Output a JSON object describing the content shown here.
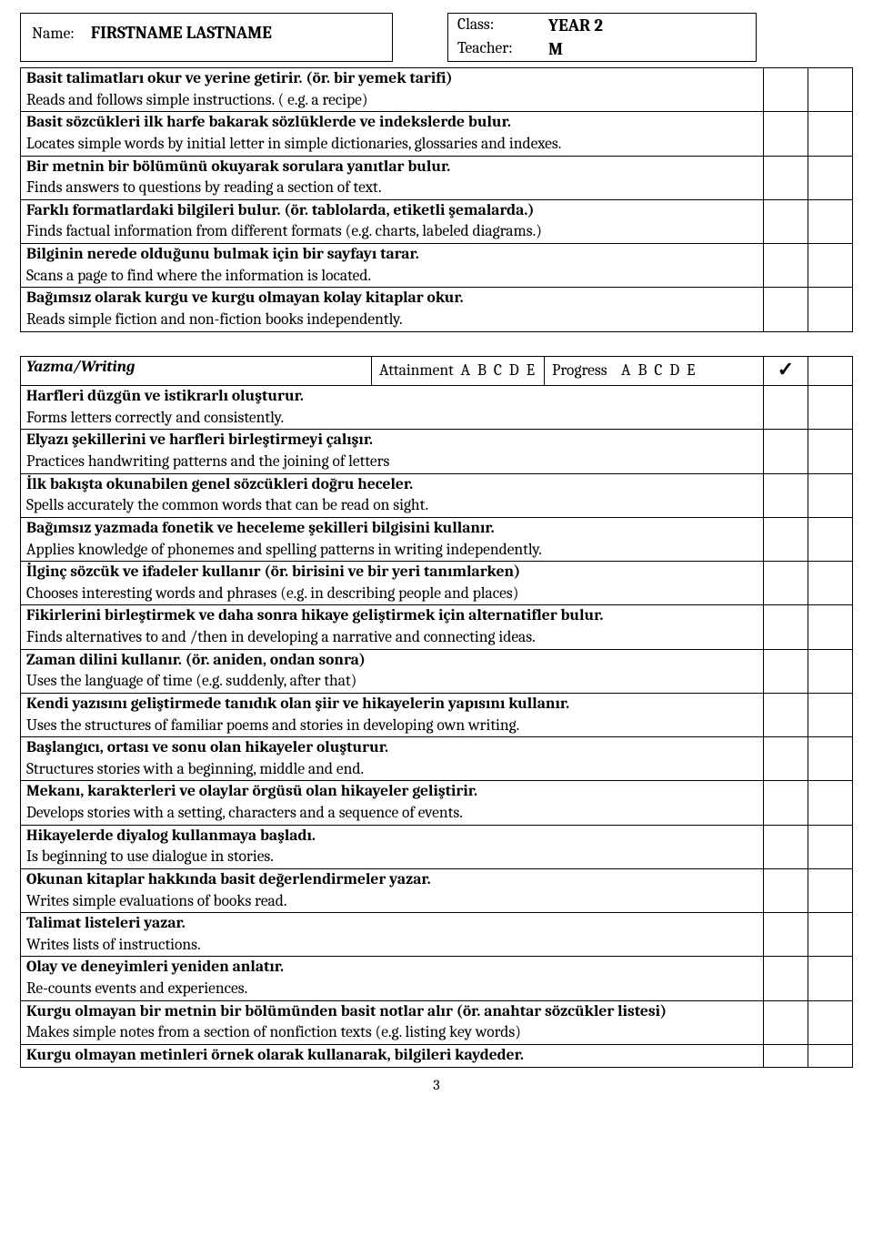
{
  "header": {
    "name_label": "Name:",
    "name_value": "FIRSTNAME LASTNAME",
    "class_label": "Class:",
    "class_value": "YEAR 2",
    "teacher_label": "Teacher:",
    "teacher_value": "M"
  },
  "reading_rows": [
    {
      "tr": "Basit talimatları okur ve yerine getirir. (ör. bir yemek tarifi)",
      "en": "Reads and follows simple instructions. ( e.g. a recipe)"
    },
    {
      "tr": "Basit sözcükleri ilk harfe bakarak sözlüklerde ve indekslerde bulur.",
      "en": "Locates simple words by initial letter in simple dictionaries, glossaries and indexes."
    },
    {
      "tr": "Bir metnin bir bölümünü okuyarak sorulara yanıtlar bulur.",
      "en": "Finds answers to questions by reading a section of text."
    },
    {
      "tr": "Farklı formatlardaki bilgileri bulur. (ör. tablolarda, etiketli şemalarda.)",
      "en": "Finds factual information from different formats (e.g. charts, labeled diagrams.)"
    },
    {
      "tr": "Bilginin nerede olduğunu bulmak için bir sayfayı tarar.",
      "en": "Scans a page to find where the information is located."
    },
    {
      "tr": "Bağımsız olarak kurgu ve kurgu olmayan kolay kitaplar okur.",
      "en": "Reads simple fiction and non-fiction books independently."
    }
  ],
  "writing_section": {
    "title": "Yazma/Writing",
    "attainment_label": "Attainment",
    "progress_label": "Progress",
    "grades": "A  B  C  D  E",
    "check": "✓"
  },
  "writing_rows": [
    {
      "tr": "Harfleri düzgün ve istikrarlı oluşturur.",
      "en": "Forms letters correctly and consistently."
    },
    {
      "tr": "Elyazı şekillerini ve harfleri birleştirmeyi çalışır.",
      "en": "Practices handwriting patterns and the joining of letters"
    },
    {
      "tr": "İlk bakışta okunabilen genel sözcükleri doğru heceler.",
      "en": "Spells accurately the common words that can be read on sight."
    },
    {
      "tr": "Bağımsız yazmada fonetik ve heceleme şekilleri bilgisini kullanır.",
      "en": "Applies knowledge of phonemes and spelling patterns in writing independently."
    },
    {
      "tr": "İlginç sözcük ve ifadeler kullanır (ör. birisini ve bir yeri tanımlarken)",
      "en": "Chooses interesting words and phrases (e.g. in describing people and places)"
    },
    {
      "tr": "Fikirlerini birleştirmek ve daha sonra hikaye geliştirmek için alternatifler bulur.",
      "en": "Finds alternatives to and /then in developing a narrative and connecting ideas."
    },
    {
      "tr": "Zaman dilini kullanır. (ör. aniden, ondan sonra)",
      "en": "Uses the language of time (e.g. suddenly, after that)"
    },
    {
      "tr": "Kendi yazısını geliştirmede tanıdık olan şiir ve hikayelerin yapısını kullanır.",
      "en": "Uses the structures of familiar poems and stories in developing own writing."
    },
    {
      "tr": "Başlangıcı, ortası ve sonu olan hikayeler oluşturur.",
      "en": "Structures stories with a beginning, middle and end."
    },
    {
      "tr": "Mekanı, karakterleri ve olaylar örgüsü olan hikayeler geliştirir.",
      "en": "Develops stories with a setting, characters and a sequence of events."
    },
    {
      "tr": "Hikayelerde diyalog kullanmaya başladı.",
      "en": "Is beginning to use dialogue in stories."
    },
    {
      "tr": "Okunan kitaplar hakkında basit değerlendirmeler yazar.",
      "en": "Writes simple evaluations of books read."
    },
    {
      "tr": "Talimat listeleri yazar.",
      "en": "Writes lists of instructions."
    },
    {
      "tr": "Olay ve deneyimleri yeniden anlatır.",
      "en": "Re-counts events and experiences."
    },
    {
      "tr": "Kurgu olmayan bir metnin bir bölümünden basit notlar alır (ör. anahtar sözcükler listesi)",
      "en": "Makes simple notes from a section of nonfiction texts (e.g. listing key words)"
    },
    {
      "tr": "Kurgu olmayan metinleri örnek olarak kullanarak, bilgileri kaydeder.",
      "en": ""
    }
  ],
  "page_number": "3"
}
